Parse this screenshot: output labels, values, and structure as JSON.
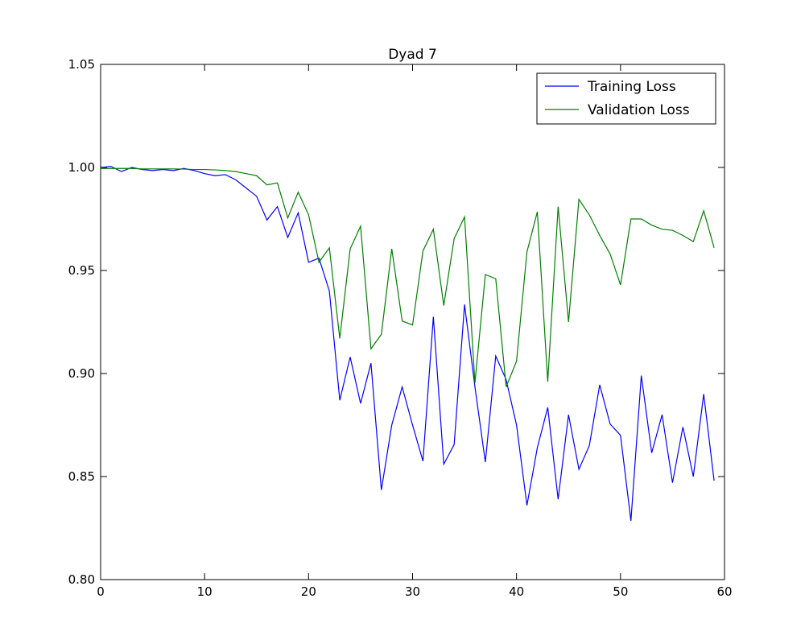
{
  "chart_data": {
    "type": "line",
    "title": "Dyad 7",
    "xlabel": "",
    "ylabel": "",
    "xlim": [
      0,
      60
    ],
    "ylim": [
      0.8,
      1.05
    ],
    "xticks": [
      0,
      10,
      20,
      30,
      40,
      50,
      60
    ],
    "yticks": [
      0.8,
      0.85,
      0.9,
      0.95,
      1.0,
      1.05
    ],
    "xtick_labels": [
      "0",
      "10",
      "20",
      "30",
      "40",
      "50",
      "60"
    ],
    "ytick_labels": [
      "0.80",
      "0.85",
      "0.90",
      "0.95",
      "1.00",
      "1.05"
    ],
    "grid": false,
    "legend_position": "top-right",
    "x": [
      0,
      1,
      2,
      3,
      4,
      5,
      6,
      7,
      8,
      9,
      10,
      11,
      12,
      13,
      14,
      15,
      16,
      17,
      18,
      19,
      20,
      21,
      22,
      23,
      24,
      25,
      26,
      27,
      28,
      29,
      30,
      31,
      32,
      33,
      34,
      35,
      36,
      37,
      38,
      39,
      40,
      41,
      42,
      43,
      44,
      45,
      46,
      47,
      48,
      49,
      50,
      51,
      52,
      53,
      54,
      55,
      56,
      57,
      58,
      59
    ],
    "series": [
      {
        "name": "Training Loss",
        "color": "#0000ff",
        "values": [
          1.0,
          1.0005,
          0.998,
          1.0,
          0.999,
          0.9985,
          0.999,
          0.9985,
          0.9995,
          0.9985,
          0.997,
          0.996,
          0.9965,
          0.994,
          0.99,
          0.986,
          0.9745,
          0.981,
          0.966,
          0.978,
          0.954,
          0.956,
          0.94,
          0.887,
          0.908,
          0.8855,
          0.905,
          0.8435,
          0.875,
          0.8935,
          0.875,
          0.8575,
          0.9275,
          0.856,
          0.8655,
          0.9335,
          0.8935,
          0.857,
          0.9085,
          0.897,
          0.875,
          0.836,
          0.864,
          0.8835,
          0.839,
          0.88,
          0.8535,
          0.865,
          0.8945,
          0.8755,
          0.87,
          0.8285,
          0.899,
          0.8615,
          0.88,
          0.847,
          0.874,
          0.85,
          0.89,
          0.848
        ]
      },
      {
        "name": "Validation Loss",
        "color": "#008000",
        "values": [
          0.9995,
          0.9995,
          0.9995,
          0.9995,
          0.9993,
          0.9993,
          0.9993,
          0.9993,
          0.9992,
          0.999,
          0.999,
          0.9988,
          0.9985,
          0.998,
          0.997,
          0.996,
          0.9915,
          0.9925,
          0.9755,
          0.988,
          0.977,
          0.954,
          0.961,
          0.917,
          0.9605,
          0.9715,
          0.912,
          0.919,
          0.9605,
          0.9255,
          0.9235,
          0.9595,
          0.97,
          0.933,
          0.9655,
          0.976,
          0.8955,
          0.948,
          0.946,
          0.8935,
          0.906,
          0.959,
          0.9785,
          0.896,
          0.981,
          0.925,
          0.9845,
          0.977,
          0.967,
          0.958,
          0.943,
          0.975,
          0.975,
          0.972,
          0.97,
          0.9695,
          0.967,
          0.964,
          0.979,
          0.961
        ]
      }
    ]
  }
}
